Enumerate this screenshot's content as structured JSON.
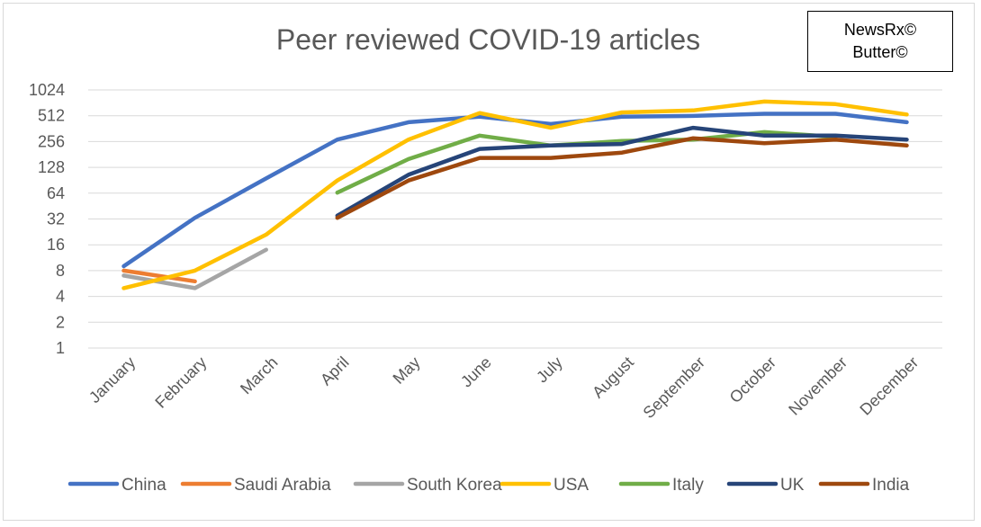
{
  "badge": {
    "line1": "NewsRx©",
    "line2": "Butter©"
  },
  "chart_data": {
    "type": "line",
    "title": "Peer reviewed COVID-19 articles",
    "y_scale": "log2",
    "ylim": [
      1,
      1024
    ],
    "y_ticks": [
      "1",
      "2",
      "4",
      "8",
      "16",
      "32",
      "64",
      "128",
      "256",
      "512",
      "1024"
    ],
    "categories": [
      "January",
      "February",
      "March",
      "April",
      "May",
      "June",
      "July",
      "August",
      "September",
      "October",
      "November",
      "December"
    ],
    "legend_position": "bottom",
    "grid": true,
    "series": [
      {
        "name": "China",
        "color": "#4472c4",
        "values": [
          9,
          33,
          95,
          270,
          430,
          500,
          410,
          500,
          510,
          540,
          540,
          430
        ]
      },
      {
        "name": "Saudi Arabia",
        "color": "#ed7d31",
        "values": [
          8,
          6,
          null,
          null,
          null,
          null,
          null,
          null,
          null,
          null,
          null,
          null
        ]
      },
      {
        "name": "South Korea",
        "color": "#a5a5a5",
        "values": [
          7,
          5,
          14,
          null,
          null,
          null,
          null,
          null,
          null,
          null,
          null,
          null
        ]
      },
      {
        "name": "USA",
        "color": "#ffc000",
        "values": [
          5,
          8,
          21,
          90,
          270,
          550,
          370,
          560,
          590,
          750,
          700,
          530
        ]
      },
      {
        "name": "Italy",
        "color": "#70ad47",
        "values": [
          null,
          null,
          null,
          65,
          160,
          300,
          230,
          260,
          270,
          330,
          290,
          null
        ]
      },
      {
        "name": "UK",
        "color": "#264478",
        "values": [
          null,
          null,
          null,
          35,
          105,
          210,
          230,
          240,
          370,
          300,
          300,
          270
        ]
      },
      {
        "name": "India",
        "color": "#9e480e",
        "values": [
          null,
          null,
          null,
          33,
          90,
          165,
          165,
          190,
          280,
          245,
          270,
          230
        ]
      }
    ]
  }
}
